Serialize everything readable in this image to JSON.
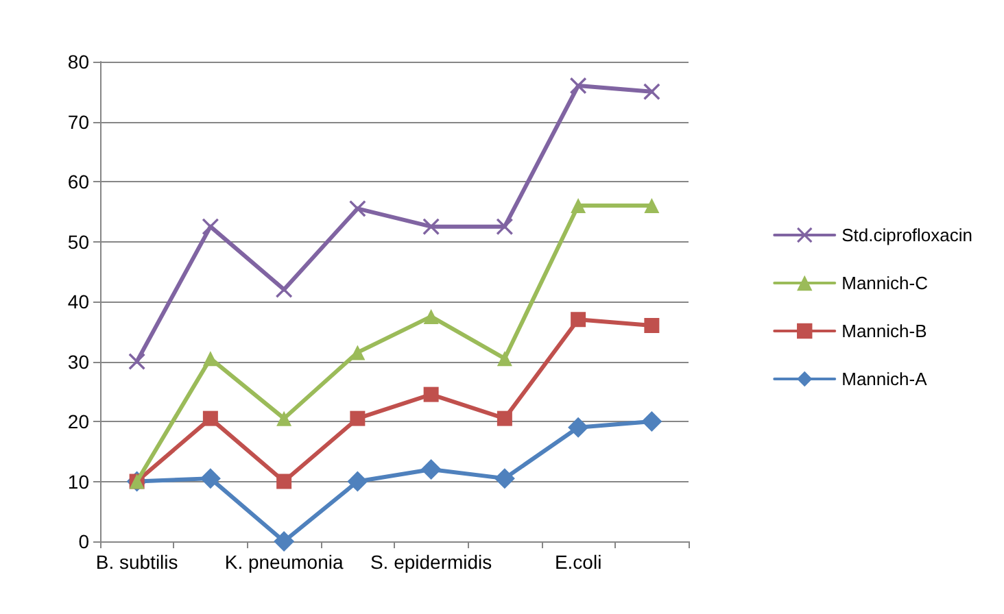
{
  "chart_data": {
    "type": "line",
    "categories": [
      "B. subtilis",
      null,
      "K. pneumonia",
      null,
      "S. epidermidis",
      null,
      "E.coli",
      null
    ],
    "series": [
      {
        "name": "Std.ciprofloxacin",
        "color": "#8064a2",
        "marker": "cross",
        "values": [
          30,
          52.5,
          42,
          55.5,
          52.5,
          52.5,
          76,
          75
        ]
      },
      {
        "name": "Mannich-C",
        "color": "#9bbb59",
        "marker": "triangle",
        "values": [
          10,
          30.5,
          20.5,
          31.5,
          37.5,
          30.5,
          56,
          56
        ]
      },
      {
        "name": "Mannich-B",
        "color": "#c0504d",
        "marker": "square",
        "values": [
          10,
          20.5,
          10,
          20.5,
          24.5,
          20.5,
          37,
          36
        ]
      },
      {
        "name": "Mannich-A",
        "color": "#4f81bd",
        "marker": "diamond",
        "values": [
          10,
          10.5,
          0,
          10,
          12,
          10.5,
          19,
          20
        ]
      }
    ],
    "ylim": [
      0,
      80
    ],
    "yticks": [
      0,
      10,
      20,
      30,
      40,
      50,
      60,
      70,
      80
    ],
    "grid": "y",
    "legend": "right",
    "line_style": "solid"
  }
}
